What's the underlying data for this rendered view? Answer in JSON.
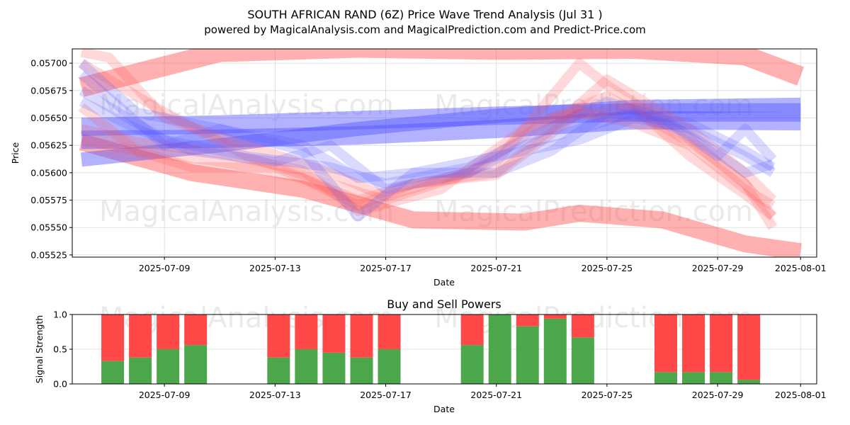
{
  "chart_data": [
    {
      "type": "line",
      "title": "SOUTH AFRICAN RAND (6Z) Price Wave Trend Analysis (Jul 31 )",
      "subtitle": "powered by MagicalAnalysis.com and MagicalPrediction.com and Predict-Price.com",
      "xlabel": "Date",
      "ylabel": "Price",
      "xlim": [
        "2025-07-05T16:00",
        "2025-08-01T14:00"
      ],
      "ylim": [
        0.05523,
        0.05713
      ],
      "x_ticks": [
        "2025-07-09",
        "2025-07-13",
        "2025-07-17",
        "2025-07-21",
        "2025-07-25",
        "2025-07-29",
        "2025-08-01"
      ],
      "y_ticks": [
        "0.05525",
        "0.05550",
        "0.05575",
        "0.05600",
        "0.05625",
        "0.05650",
        "0.05675",
        "0.05700"
      ],
      "watermarks": [
        "MagicalAnalysis.com",
        "MagicalPrediction.com"
      ],
      "band_series": [
        {
          "color": "red",
          "width": 28,
          "x": [
            "2025-07-06",
            "2025-07-11",
            "2025-07-16",
            "2025-07-21",
            "2025-07-26",
            "2025-07-30",
            "2025-08-01"
          ],
          "y": [
            0.05678,
            0.0571,
            0.05714,
            0.05712,
            0.05713,
            0.05707,
            0.05688
          ]
        },
        {
          "color": "red",
          "width": 24,
          "x": [
            "2025-07-06",
            "2025-07-10",
            "2025-07-14",
            "2025-07-18",
            "2025-07-22",
            "2025-07-24",
            "2025-07-27",
            "2025-07-30",
            "2025-08-01"
          ],
          "y": [
            0.05628,
            0.056,
            0.05585,
            0.05557,
            0.05555,
            0.05563,
            0.05557,
            0.05535,
            0.05528
          ]
        },
        {
          "color": "blue",
          "width": 26,
          "x": [
            "2025-07-06",
            "2025-07-11",
            "2025-07-16",
            "2025-07-21",
            "2025-07-26",
            "2025-08-01"
          ],
          "y": [
            0.05642,
            0.05644,
            0.05648,
            0.05652,
            0.05655,
            0.05655
          ]
        },
        {
          "color": "blue",
          "width": 26,
          "x": [
            "2025-07-06",
            "2025-07-11",
            "2025-07-16",
            "2025-07-21",
            "2025-07-26",
            "2025-08-01"
          ],
          "y": [
            0.0563,
            0.05631,
            0.05634,
            0.0564,
            0.05648,
            0.05647
          ]
        },
        {
          "color": "blue",
          "width": 20,
          "x": [
            "2025-07-06",
            "2025-07-11",
            "2025-07-16",
            "2025-07-21",
            "2025-07-26",
            "2025-08-01"
          ],
          "y": [
            0.05612,
            0.05625,
            0.0564,
            0.05652,
            0.0566,
            0.05662
          ]
        }
      ],
      "wave_series": [
        {
          "color": "red",
          "width": 14,
          "x": [
            "2025-07-06",
            "2025-07-07",
            "2025-07-09",
            "2025-07-12",
            "2025-07-15",
            "2025-07-17",
            "2025-07-21",
            "2025-07-24",
            "2025-07-25",
            "2025-07-28",
            "2025-07-30",
            "2025-07-31"
          ],
          "y": [
            0.0571,
            0.05705,
            0.0565,
            0.05625,
            0.056,
            0.05578,
            0.0561,
            0.057,
            0.0568,
            0.0563,
            0.0559,
            0.0555
          ]
        },
        {
          "color": "red",
          "width": 14,
          "x": [
            "2025-07-06",
            "2025-07-08",
            "2025-07-11",
            "2025-07-14",
            "2025-07-16",
            "2025-07-19",
            "2025-07-22",
            "2025-07-25",
            "2025-07-28",
            "2025-07-30",
            "2025-07-31"
          ],
          "y": [
            0.0564,
            0.05628,
            0.05618,
            0.05602,
            0.05565,
            0.05585,
            0.0564,
            0.0567,
            0.05628,
            0.0559,
            0.0556
          ]
        },
        {
          "color": "red",
          "width": 14,
          "x": [
            "2025-07-06",
            "2025-07-08",
            "2025-07-10",
            "2025-07-13",
            "2025-07-16",
            "2025-07-18",
            "2025-07-21",
            "2025-07-23",
            "2025-07-25",
            "2025-07-28",
            "2025-07-30",
            "2025-07-31"
          ],
          "y": [
            0.0566,
            0.0562,
            0.05605,
            0.05605,
            0.05575,
            0.0559,
            0.056,
            0.0564,
            0.05685,
            0.0564,
            0.056,
            0.05575
          ]
        },
        {
          "color": "red",
          "width": 14,
          "x": [
            "2025-07-06",
            "2025-07-09",
            "2025-07-12",
            "2025-07-15",
            "2025-07-17",
            "2025-07-20",
            "2025-07-23",
            "2025-07-26",
            "2025-07-28",
            "2025-07-30",
            "2025-07-31"
          ],
          "y": [
            0.057,
            0.05655,
            0.05615,
            0.0559,
            0.05575,
            0.056,
            0.0565,
            0.0566,
            0.05615,
            0.0558,
            0.0556
          ]
        },
        {
          "color": "red",
          "width": 14,
          "x": [
            "2025-07-06",
            "2025-07-08",
            "2025-07-11",
            "2025-07-14",
            "2025-07-16",
            "2025-07-18",
            "2025-07-21",
            "2025-07-24",
            "2025-07-26",
            "2025-07-28",
            "2025-07-30",
            "2025-07-31"
          ],
          "y": [
            0.0563,
            0.0562,
            0.0561,
            0.05595,
            0.0557,
            0.0559,
            0.05598,
            0.05655,
            0.05645,
            0.05625,
            0.05585,
            0.0557
          ]
        },
        {
          "color": "blue",
          "width": 14,
          "x": [
            "2025-07-06",
            "2025-07-08",
            "2025-07-11",
            "2025-07-14",
            "2025-07-16",
            "2025-07-18",
            "2025-07-21",
            "2025-07-24",
            "2025-07-26",
            "2025-07-28",
            "2025-07-30",
            "2025-07-31"
          ],
          "y": [
            0.057,
            0.05655,
            0.0564,
            0.05625,
            0.05595,
            0.056,
            0.05615,
            0.0563,
            0.0565,
            0.0564,
            0.05615,
            0.056
          ]
        },
        {
          "color": "blue",
          "width": 14,
          "x": [
            "2025-07-06",
            "2025-07-09",
            "2025-07-11",
            "2025-07-14",
            "2025-07-16",
            "2025-07-18",
            "2025-07-21",
            "2025-07-23",
            "2025-07-25",
            "2025-07-28",
            "2025-07-30",
            "2025-07-31"
          ],
          "y": [
            0.0569,
            0.05625,
            0.0564,
            0.0562,
            0.0556,
            0.056,
            0.056,
            0.0562,
            0.05655,
            0.05645,
            0.0562,
            0.05605
          ]
        },
        {
          "color": "blue",
          "width": 14,
          "x": [
            "2025-07-06",
            "2025-07-08",
            "2025-07-10",
            "2025-07-13",
            "2025-07-15",
            "2025-07-17",
            "2025-07-20",
            "2025-07-22",
            "2025-07-24",
            "2025-07-26",
            "2025-07-28",
            "2025-07-30",
            "2025-07-31"
          ],
          "y": [
            0.05665,
            0.0564,
            0.0562,
            0.0561,
            0.05625,
            0.05585,
            0.056,
            0.05625,
            0.0564,
            0.05655,
            0.05635,
            0.056,
            0.05608
          ]
        },
        {
          "color": "blue",
          "width": 14,
          "x": [
            "2025-07-06",
            "2025-07-09",
            "2025-07-12",
            "2025-07-15",
            "2025-07-17",
            "2025-07-20",
            "2025-07-22",
            "2025-07-25",
            "2025-07-27",
            "2025-07-29",
            "2025-07-30",
            "2025-07-31"
          ],
          "y": [
            0.05675,
            0.0563,
            0.05615,
            0.05605,
            0.0559,
            0.05605,
            0.0563,
            0.05665,
            0.0565,
            0.05615,
            0.0564,
            0.05612
          ]
        }
      ]
    },
    {
      "type": "bar",
      "title": "Buy and Sell Powers",
      "xlabel": "Date",
      "ylabel": "Signal Strength",
      "ylim": [
        0,
        1
      ],
      "y_ticks": [
        "0.0",
        "0.5",
        "1.0"
      ],
      "x_ticks": [
        "2025-07-09",
        "2025-07-13",
        "2025-07-17",
        "2025-07-21",
        "2025-07-25",
        "2025-07-29",
        "2025-08-01"
      ],
      "buy_color": "#4ca64c",
      "sell_color": "#ff4848",
      "dates": [
        "2025-07-07",
        "2025-07-08",
        "2025-07-09",
        "2025-07-10",
        "2025-07-13",
        "2025-07-14",
        "2025-07-15",
        "2025-07-16",
        "2025-07-17",
        "2025-07-20",
        "2025-07-21",
        "2025-07-22",
        "2025-07-23",
        "2025-07-24",
        "2025-07-27",
        "2025-07-28",
        "2025-07-29",
        "2025-07-30"
      ],
      "buy": [
        0.33,
        0.38,
        0.5,
        0.56,
        0.38,
        0.5,
        0.45,
        0.38,
        0.5,
        0.56,
        1.0,
        0.83,
        0.94,
        0.67,
        0.17,
        0.17,
        0.17,
        0.06
      ],
      "sell": [
        0.67,
        0.62,
        0.5,
        0.44,
        0.62,
        0.5,
        0.55,
        0.62,
        0.5,
        0.44,
        0.0,
        0.17,
        0.06,
        0.33,
        0.83,
        0.83,
        0.83,
        0.94
      ]
    }
  ]
}
